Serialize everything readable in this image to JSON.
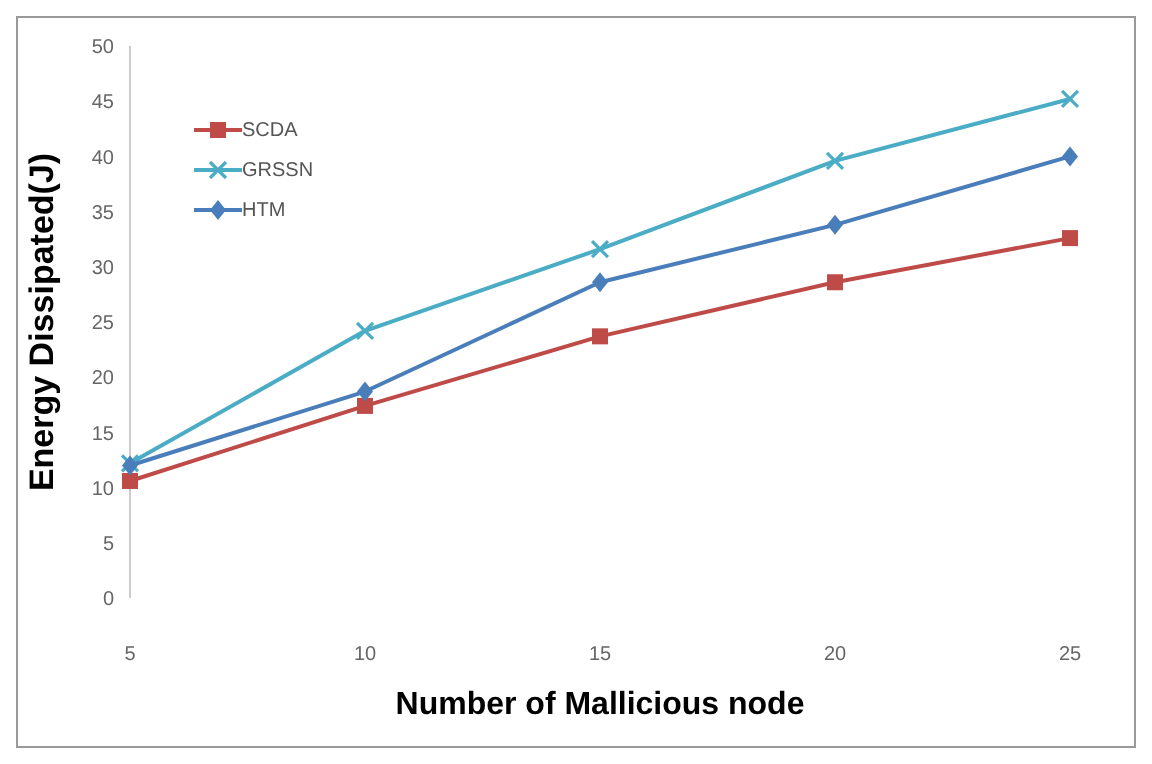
{
  "chart_data": {
    "type": "line",
    "xlabel": "Number of Mallicious node",
    "ylabel": "Energy Dissipated(J)",
    "categories": [
      "5",
      "10",
      "15",
      "20",
      "25"
    ],
    "series": [
      {
        "name": "SCDA",
        "color": "#be4b48",
        "marker": "square",
        "values": [
          10.6,
          17.4,
          23.7,
          28.6,
          32.6
        ]
      },
      {
        "name": "GRSSN",
        "color": "#4bacc6",
        "marker": "cross",
        "values": [
          12.2,
          24.2,
          31.6,
          39.6,
          45.2
        ]
      },
      {
        "name": "HTM",
        "color": "#4a7ebb",
        "marker": "diamond",
        "values": [
          12.0,
          18.7,
          28.6,
          33.8,
          40.0
        ]
      }
    ],
    "ylim": [
      0,
      50
    ],
    "yticks": [
      0,
      5,
      10,
      15,
      20,
      25,
      30,
      35,
      40,
      45,
      50
    ],
    "grid": false,
    "legend": "top left"
  }
}
